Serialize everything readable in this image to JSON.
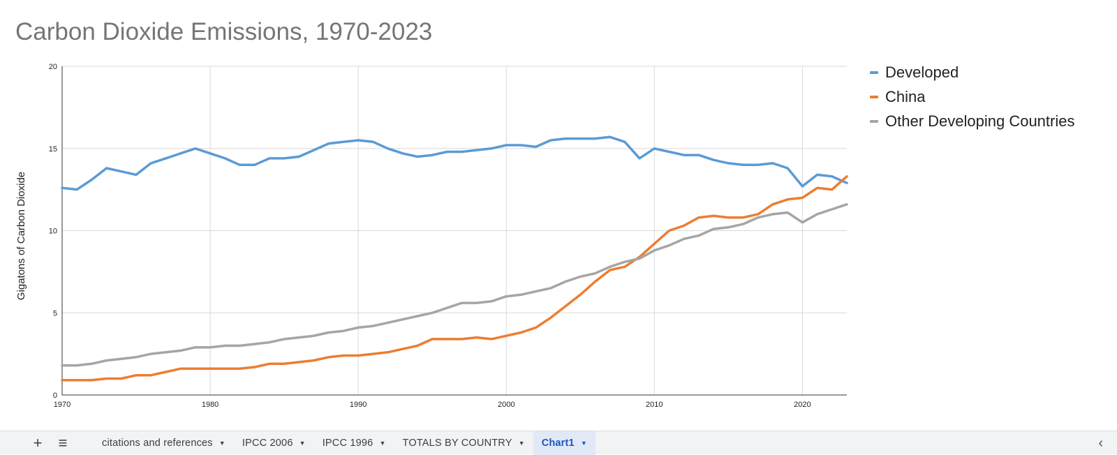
{
  "chart_data": {
    "type": "line",
    "title": "Carbon Dioxide Emissions, 1970-2023",
    "xlabel": "",
    "ylabel": "Gigatons of Carbon Dioxide",
    "xlim": [
      1970,
      2023
    ],
    "ylim": [
      0,
      20
    ],
    "x_ticks": [
      1970,
      1980,
      1990,
      2000,
      2010,
      2020
    ],
    "y_ticks": [
      0,
      5,
      10,
      15,
      20
    ],
    "grid": true,
    "legend_position": "right",
    "x": [
      1970,
      1971,
      1972,
      1973,
      1974,
      1975,
      1976,
      1977,
      1978,
      1979,
      1980,
      1981,
      1982,
      1983,
      1984,
      1985,
      1986,
      1987,
      1988,
      1989,
      1990,
      1991,
      1992,
      1993,
      1994,
      1995,
      1996,
      1997,
      1998,
      1999,
      2000,
      2001,
      2002,
      2003,
      2004,
      2005,
      2006,
      2007,
      2008,
      2009,
      2010,
      2011,
      2012,
      2013,
      2014,
      2015,
      2016,
      2017,
      2018,
      2019,
      2020,
      2021,
      2022,
      2023
    ],
    "series": [
      {
        "name": "Developed",
        "color": "#5a9bd5",
        "values": [
          12.6,
          12.5,
          13.1,
          13.8,
          13.6,
          13.4,
          14.1,
          14.4,
          14.7,
          15.0,
          14.7,
          14.4,
          14.0,
          14.0,
          14.4,
          14.4,
          14.5,
          14.9,
          15.3,
          15.4,
          15.5,
          15.4,
          15.0,
          14.7,
          14.5,
          14.6,
          14.8,
          14.8,
          14.9,
          15.0,
          15.2,
          15.2,
          15.1,
          15.5,
          15.6,
          15.6,
          15.6,
          15.7,
          15.4,
          14.4,
          15.0,
          14.8,
          14.6,
          14.6,
          14.3,
          14.1,
          14.0,
          14.0,
          14.1,
          13.8,
          12.7,
          13.4,
          13.3,
          12.9
        ]
      },
      {
        "name": "China",
        "color": "#ed7d31",
        "values": [
          0.9,
          0.9,
          0.9,
          1.0,
          1.0,
          1.2,
          1.2,
          1.4,
          1.6,
          1.6,
          1.6,
          1.6,
          1.6,
          1.7,
          1.9,
          1.9,
          2.0,
          2.1,
          2.3,
          2.4,
          2.4,
          2.5,
          2.6,
          2.8,
          3.0,
          3.4,
          3.4,
          3.4,
          3.5,
          3.4,
          3.6,
          3.8,
          4.1,
          4.7,
          5.4,
          6.1,
          6.9,
          7.6,
          7.8,
          8.4,
          9.2,
          10.0,
          10.3,
          10.8,
          10.9,
          10.8,
          10.8,
          11.0,
          11.6,
          11.9,
          12.0,
          12.6,
          12.5,
          13.3
        ]
      },
      {
        "name": "Other Developing Countries",
        "color": "#a5a5a5",
        "values": [
          1.8,
          1.8,
          1.9,
          2.1,
          2.2,
          2.3,
          2.5,
          2.6,
          2.7,
          2.9,
          2.9,
          3.0,
          3.0,
          3.1,
          3.2,
          3.4,
          3.5,
          3.6,
          3.8,
          3.9,
          4.1,
          4.2,
          4.4,
          4.6,
          4.8,
          5.0,
          5.3,
          5.6,
          5.6,
          5.7,
          6.0,
          6.1,
          6.3,
          6.5,
          6.9,
          7.2,
          7.4,
          7.8,
          8.1,
          8.3,
          8.8,
          9.1,
          9.5,
          9.7,
          10.1,
          10.2,
          10.4,
          10.8,
          11.0,
          11.1,
          10.5,
          11.0,
          11.3,
          11.6
        ]
      }
    ]
  },
  "sheet_bar": {
    "add_icon": "+",
    "menu_icon": "≡",
    "nav_icon": "‹",
    "tabs": [
      {
        "label": "citations and references",
        "active": false
      },
      {
        "label": "IPCC 2006",
        "active": false
      },
      {
        "label": "IPCC 1996",
        "active": false
      },
      {
        "label": "TOTALS BY COUNTRY",
        "active": false
      },
      {
        "label": "Chart1",
        "active": true
      }
    ]
  }
}
